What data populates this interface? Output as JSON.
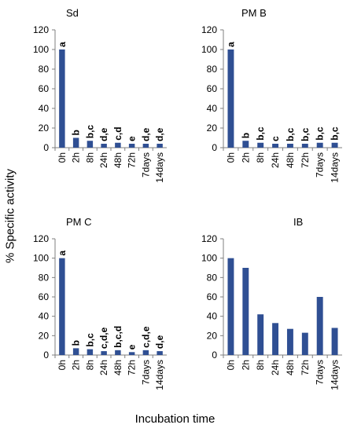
{
  "figure": {
    "ylabel": "% Specific activity",
    "xlabel": "Incubation time"
  },
  "chart_data": [
    {
      "type": "bar",
      "title": "Sd",
      "categories": [
        "0h",
        "2h",
        "8h",
        "24h",
        "48h",
        "72h",
        "7days",
        "14days"
      ],
      "values": [
        100,
        10,
        7,
        4,
        5,
        4,
        4,
        4
      ],
      "annotations": [
        "a",
        "b",
        "b,c",
        "d,e",
        "c,d",
        "e",
        "d,e",
        "d,e"
      ],
      "ylim": [
        0,
        120
      ],
      "yticks": [
        0,
        20,
        40,
        60,
        80,
        100,
        120
      ],
      "grid": false,
      "color": "#2f4f93"
    },
    {
      "type": "bar",
      "title": "PM B",
      "categories": [
        "0h",
        "2h",
        "8h",
        "24h",
        "48h",
        "72h",
        "7days",
        "14days"
      ],
      "values": [
        100,
        7,
        5,
        4,
        4,
        4,
        5,
        5
      ],
      "annotations": [
        "a",
        "b",
        "b,c",
        "c",
        "b,c",
        "b,c",
        "b,c",
        "b,c"
      ],
      "ylim": [
        0,
        120
      ],
      "yticks": [
        0,
        20,
        40,
        60,
        80,
        100,
        120
      ],
      "grid": false,
      "color": "#2f4f93"
    },
    {
      "type": "bar",
      "title": "PM C",
      "categories": [
        "0h",
        "2h",
        "8h",
        "24h",
        "48h",
        "72h",
        "7days",
        "14days"
      ],
      "values": [
        100,
        7,
        6,
        4,
        5,
        3,
        5,
        4
      ],
      "annotations": [
        "a",
        "b",
        "b,c",
        "c,d,e",
        "b,c,d",
        "e",
        "c,d,e",
        "d,e"
      ],
      "ylim": [
        0,
        120
      ],
      "yticks": [
        0,
        20,
        40,
        60,
        80,
        100,
        120
      ],
      "grid": false,
      "color": "#2f4f93"
    },
    {
      "type": "bar",
      "title": "IB",
      "categories": [
        "0h",
        "2h",
        "8h",
        "24h",
        "48h",
        "72h",
        "7days",
        "14days"
      ],
      "values": [
        100,
        90,
        42,
        33,
        27,
        23,
        60,
        28
      ],
      "annotations": [],
      "ylim": [
        0,
        120
      ],
      "yticks": [
        0,
        20,
        40,
        60,
        80,
        100,
        120
      ],
      "grid": false,
      "color": "#2f4f93"
    }
  ]
}
